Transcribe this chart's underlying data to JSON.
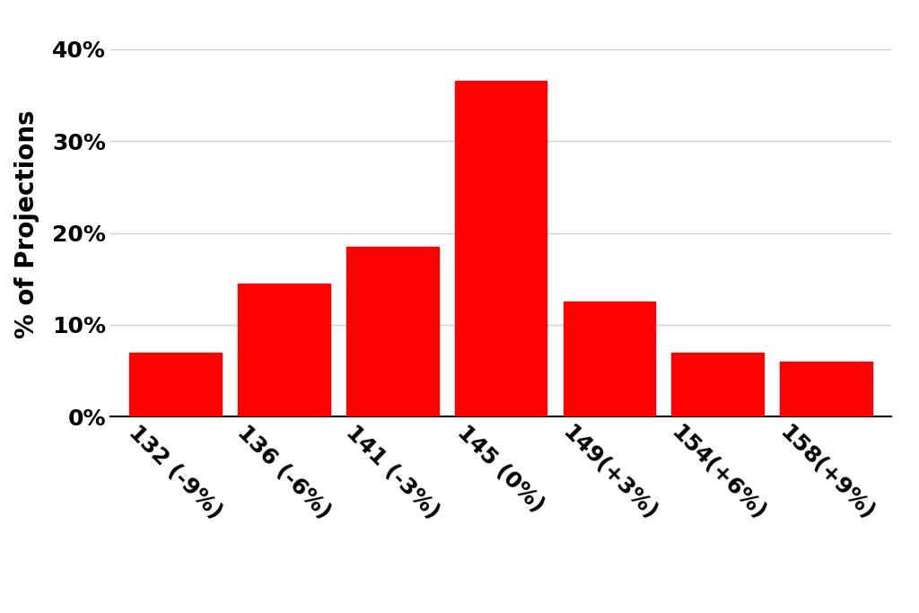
{
  "categories": [
    "132 (-9%)",
    "136 (-6%)",
    "141 (-3%)",
    "145 (0%)",
    "149(+3%)",
    "154(+6%)",
    "158(+9%)"
  ],
  "values": [
    7.0,
    14.5,
    18.5,
    36.5,
    12.5,
    7.0,
    6.0
  ],
  "bar_color": "#ff0000",
  "ylabel": "% of Projections",
  "ylim": [
    0,
    42
  ],
  "yticks": [
    0,
    10,
    20,
    30,
    40
  ],
  "ytick_labels": [
    "0%",
    "10%",
    "20%",
    "30%",
    "40%"
  ],
  "background_color": "#ffffff",
  "grid_color": "#d0d0d0",
  "xlabel_fontsize": 22,
  "ylabel_fontsize": 20,
  "tick_fontsize": 18,
  "bar_width": 0.85
}
